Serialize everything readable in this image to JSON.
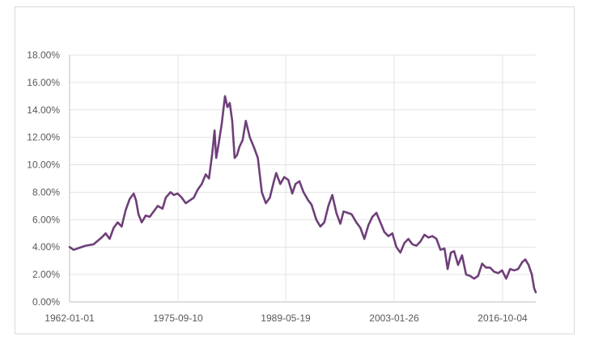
{
  "chart_data": {
    "type": "line",
    "title": "",
    "xlabel": "",
    "ylabel": "",
    "x_ticks": [
      "1962-01-01",
      "1975-09-10",
      "1989-05-19",
      "2003-01-26",
      "2016-10-04"
    ],
    "y_ticks": [
      "0.00%",
      "2.00%",
      "4.00%",
      "6.00%",
      "8.00%",
      "10.00%",
      "12.00%",
      "14.00%",
      "16.00%",
      "18.00%"
    ],
    "ylim": [
      0,
      18
    ],
    "xlim": [
      1962.0,
      2020.2
    ],
    "grid": "vertical-at-x-ticks-and-horizontal",
    "legend": "none",
    "series": [
      {
        "color": "#6f3f79",
        "x": [
          1962.0,
          1962.5,
          1963.0,
          1964.0,
          1965.0,
          1966.0,
          1966.5,
          1967.0,
          1967.5,
          1968.0,
          1968.5,
          1969.0,
          1969.5,
          1970.0,
          1970.3,
          1970.6,
          1971.0,
          1971.5,
          1972.0,
          1973.0,
          1973.6,
          1974.0,
          1974.6,
          1975.0,
          1975.5,
          1976.0,
          1976.5,
          1977.0,
          1977.5,
          1978.0,
          1978.5,
          1979.0,
          1979.4,
          1979.8,
          1980.1,
          1980.3,
          1980.6,
          1981.0,
          1981.4,
          1981.7,
          1982.0,
          1982.3,
          1982.6,
          1982.9,
          1983.2,
          1983.6,
          1984.0,
          1984.5,
          1985.0,
          1985.5,
          1986.0,
          1986.5,
          1987.0,
          1987.5,
          1987.8,
          1988.3,
          1988.8,
          1989.3,
          1989.8,
          1990.2,
          1990.7,
          1991.2,
          1991.8,
          1992.2,
          1992.8,
          1993.3,
          1993.8,
          1994.3,
          1994.8,
          1995.3,
          1995.8,
          1996.2,
          1996.7,
          1997.2,
          1997.8,
          1998.3,
          1998.8,
          1999.3,
          1999.8,
          2000.3,
          2000.8,
          2001.3,
          2001.8,
          2002.3,
          2002.8,
          2003.3,
          2003.8,
          2004.3,
          2004.8,
          2005.3,
          2005.8,
          2006.3,
          2006.8,
          2007.3,
          2007.8,
          2008.3,
          2008.8,
          2009.2,
          2009.6,
          2010.0,
          2010.5,
          2011.0,
          2011.5,
          2012.0,
          2012.5,
          2013.0,
          2013.5,
          2014.0,
          2014.5,
          2015.0,
          2015.5,
          2016.0,
          2016.5,
          2017.0,
          2017.5,
          2018.0,
          2018.5,
          2018.9,
          2019.3,
          2019.7,
          2020.0,
          2020.2
        ],
        "y": [
          4.0,
          3.8,
          3.9,
          4.1,
          4.2,
          4.7,
          5.0,
          4.6,
          5.4,
          5.8,
          5.5,
          6.7,
          7.5,
          7.9,
          7.4,
          6.4,
          5.8,
          6.3,
          6.2,
          7.0,
          6.8,
          7.6,
          8.0,
          7.8,
          7.9,
          7.6,
          7.2,
          7.4,
          7.6,
          8.2,
          8.6,
          9.3,
          9.0,
          10.8,
          12.5,
          10.5,
          11.5,
          13.0,
          15.0,
          14.2,
          14.5,
          13.2,
          10.5,
          10.7,
          11.3,
          11.8,
          13.2,
          12.0,
          11.3,
          10.5,
          8.0,
          7.2,
          7.6,
          8.8,
          9.4,
          8.6,
          9.1,
          8.9,
          7.9,
          8.6,
          8.8,
          8.0,
          7.4,
          7.1,
          6.0,
          5.5,
          5.8,
          7.0,
          7.8,
          6.5,
          5.7,
          6.6,
          6.5,
          6.4,
          5.8,
          5.4,
          4.6,
          5.6,
          6.2,
          6.5,
          5.8,
          5.1,
          4.8,
          5.0,
          4.0,
          3.6,
          4.3,
          4.6,
          4.2,
          4.1,
          4.4,
          4.9,
          4.7,
          4.8,
          4.6,
          3.8,
          3.9,
          2.4,
          3.6,
          3.7,
          2.7,
          3.4,
          2.0,
          1.9,
          1.7,
          1.9,
          2.8,
          2.5,
          2.5,
          2.2,
          2.1,
          2.3,
          1.7,
          2.4,
          2.3,
          2.4,
          2.9,
          3.1,
          2.7,
          2.0,
          1.0,
          0.7
        ]
      }
    ]
  }
}
